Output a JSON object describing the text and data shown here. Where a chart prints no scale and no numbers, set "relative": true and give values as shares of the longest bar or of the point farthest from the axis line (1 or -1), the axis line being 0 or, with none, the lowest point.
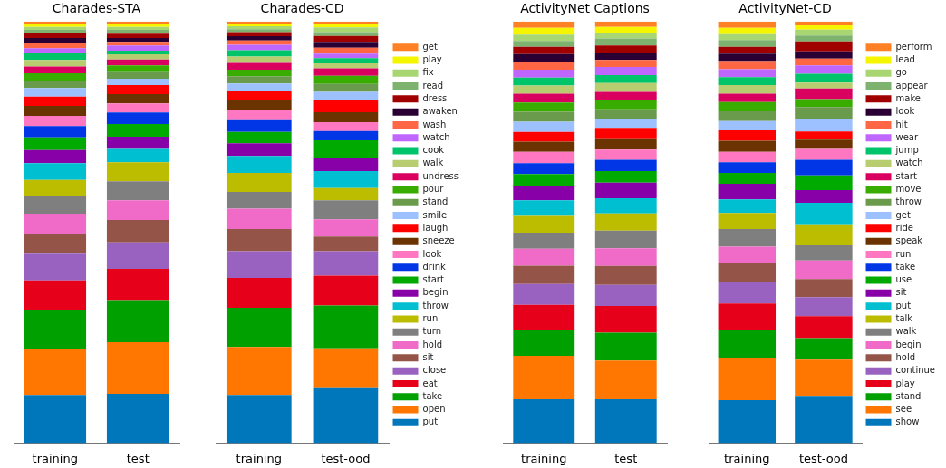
{
  "chart_data": [
    {
      "type": "bar",
      "title": "Charades-STA",
      "stacked": true,
      "relative": true,
      "categories": [
        "training",
        "test"
      ],
      "series": [
        {
          "color": "#0077bb",
          "values": [
            0.114,
            0.117
          ]
        },
        {
          "color": "#ff7700",
          "values": [
            0.11,
            0.122
          ]
        },
        {
          "color": "#00a000",
          "values": [
            0.092,
            0.1
          ]
        },
        {
          "color": "#e6001a",
          "values": [
            0.07,
            0.074
          ]
        },
        {
          "color": "#9a62c0",
          "values": [
            0.063,
            0.063
          ]
        },
        {
          "color": "#955448",
          "values": [
            0.048,
            0.053
          ]
        },
        {
          "color": "#f06ac8",
          "values": [
            0.047,
            0.047
          ]
        },
        {
          "color": "#7f7f7f",
          "values": [
            0.041,
            0.045
          ]
        },
        {
          "color": "#bcbd00",
          "values": [
            0.039,
            0.045
          ]
        },
        {
          "color": "#00bfd0",
          "values": [
            0.04,
            0.032
          ]
        },
        {
          "color": "#8800a8",
          "values": [
            0.031,
            0.029
          ]
        },
        {
          "color": "#00aa00",
          "values": [
            0.03,
            0.03
          ]
        },
        {
          "color": "#0036e6",
          "values": [
            0.027,
            0.027
          ]
        },
        {
          "color": "#ff77c0",
          "values": [
            0.024,
            0.022
          ]
        },
        {
          "color": "#6b3300",
          "values": [
            0.024,
            0.022
          ]
        },
        {
          "color": "#ff0000",
          "values": [
            0.022,
            0.021
          ]
        },
        {
          "color": "#9dc0ff",
          "values": [
            0.02,
            0.015
          ]
        },
        {
          "color": "#6a9a4c",
          "values": [
            0.018,
            0.018
          ]
        },
        {
          "color": "#38ad00",
          "values": [
            0.017,
            0.014
          ]
        },
        {
          "color": "#da0060",
          "values": [
            0.016,
            0.014
          ]
        },
        {
          "color": "#b8cc70",
          "values": [
            0.016,
            0.012
          ]
        },
        {
          "color": "#00c46a",
          "values": [
            0.016,
            0.009
          ]
        },
        {
          "color": "#bf66ff",
          "values": [
            0.012,
            0.012
          ]
        },
        {
          "color": "#ff6644",
          "values": [
            0.012,
            0.009
          ]
        },
        {
          "color": "#2a0034",
          "values": [
            0.012,
            0.009
          ]
        },
        {
          "color": "#a00000",
          "values": [
            0.012,
            0.01
          ]
        },
        {
          "color": "#7db36e",
          "values": [
            0.007,
            0.009
          ]
        },
        {
          "color": "#a8d672",
          "values": [
            0.007,
            0.007
          ]
        },
        {
          "color": "#f5f500",
          "values": [
            0.007,
            0.007
          ]
        },
        {
          "color": "#fe8126",
          "values": [
            0.006,
            0.006
          ]
        }
      ]
    },
    {
      "type": "bar",
      "title": "Charades-CD",
      "stacked": true,
      "relative": true,
      "legend": "right",
      "categories": [
        "training",
        "test-ood"
      ],
      "series": [
        {
          "name": "put",
          "color": "#0077bb",
          "values": [
            0.114,
            0.13
          ]
        },
        {
          "name": "open",
          "color": "#ff7700",
          "values": [
            0.114,
            0.095
          ]
        },
        {
          "name": "take",
          "color": "#00a000",
          "values": [
            0.093,
            0.101
          ]
        },
        {
          "name": "eat",
          "color": "#e6001a",
          "values": [
            0.071,
            0.071
          ]
        },
        {
          "name": "close",
          "color": "#9a62c0",
          "values": [
            0.063,
            0.058
          ]
        },
        {
          "name": "sit",
          "color": "#955448",
          "values": [
            0.053,
            0.035
          ]
        },
        {
          "name": "hold",
          "color": "#f06ac8",
          "values": [
            0.048,
            0.041
          ]
        },
        {
          "name": "turn",
          "color": "#7f7f7f",
          "values": [
            0.04,
            0.045
          ]
        },
        {
          "name": "run",
          "color": "#bcbd00",
          "values": [
            0.045,
            0.029
          ]
        },
        {
          "name": "throw",
          "color": "#00bfd0",
          "values": [
            0.04,
            0.04
          ]
        },
        {
          "name": "begin",
          "color": "#8800a8",
          "values": [
            0.03,
            0.032
          ]
        },
        {
          "name": "start",
          "color": "#00aa00",
          "values": [
            0.027,
            0.041
          ]
        },
        {
          "name": "drink",
          "color": "#0036e6",
          "values": [
            0.028,
            0.022
          ]
        },
        {
          "name": "look",
          "color": "#ff77c0",
          "values": [
            0.024,
            0.021
          ]
        },
        {
          "name": "sneeze",
          "color": "#6b3300",
          "values": [
            0.024,
            0.024
          ]
        },
        {
          "name": "laugh",
          "color": "#ff0000",
          "values": [
            0.02,
            0.03
          ]
        },
        {
          "name": "smile",
          "color": "#9dc0ff",
          "values": [
            0.019,
            0.018
          ]
        },
        {
          "name": "stand",
          "color": "#6a9a4c",
          "values": [
            0.017,
            0.019
          ]
        },
        {
          "name": "pour",
          "color": "#38ad00",
          "values": [
            0.016,
            0.019
          ]
        },
        {
          "name": "undress",
          "color": "#da0060",
          "values": [
            0.016,
            0.018
          ]
        },
        {
          "name": "walk",
          "color": "#b8cc70",
          "values": [
            0.015,
            0.012
          ]
        },
        {
          "name": "cook",
          "color": "#00c46a",
          "values": [
            0.015,
            0.012
          ]
        },
        {
          "name": "watch",
          "color": "#bf66ff",
          "values": [
            0.013,
            0.011
          ]
        },
        {
          "name": "wash",
          "color": "#ff6644",
          "values": [
            0.01,
            0.014
          ]
        },
        {
          "name": "awaken",
          "color": "#2a0034",
          "values": [
            0.01,
            0.014
          ]
        },
        {
          "name": "dress",
          "color": "#a00000",
          "values": [
            0.01,
            0.014
          ]
        },
        {
          "name": "read",
          "color": "#7db36e",
          "values": [
            0.007,
            0.009
          ]
        },
        {
          "name": "fix",
          "color": "#a8d672",
          "values": [
            0.007,
            0.011
          ]
        },
        {
          "name": "play",
          "color": "#f5f500",
          "values": [
            0.006,
            0.008
          ]
        },
        {
          "name": "get",
          "color": "#fe8126",
          "values": [
            0.005,
            0.006
          ]
        }
      ]
    },
    {
      "type": "bar",
      "title": "ActivityNet Captions",
      "stacked": true,
      "relative": true,
      "categories": [
        "training",
        "test"
      ],
      "series": [
        {
          "color": "#0077bb",
          "values": [
            0.104,
            0.104
          ]
        },
        {
          "color": "#ff7700",
          "values": [
            0.103,
            0.092
          ]
        },
        {
          "color": "#00a000",
          "values": [
            0.06,
            0.066
          ]
        },
        {
          "color": "#e6001a",
          "values": [
            0.061,
            0.063
          ]
        },
        {
          "color": "#9a62c0",
          "values": [
            0.049,
            0.05
          ]
        },
        {
          "color": "#955448",
          "values": [
            0.044,
            0.045
          ]
        },
        {
          "color": "#f06ac8",
          "values": [
            0.04,
            0.042
          ]
        },
        {
          "color": "#7f7f7f",
          "values": [
            0.038,
            0.042
          ]
        },
        {
          "color": "#bcbd00",
          "values": [
            0.04,
            0.041
          ]
        },
        {
          "color": "#00bfd0",
          "values": [
            0.037,
            0.036
          ]
        },
        {
          "color": "#8800a8",
          "values": [
            0.034,
            0.037
          ]
        },
        {
          "color": "#00aa00",
          "values": [
            0.028,
            0.027
          ]
        },
        {
          "color": "#0036e6",
          "values": [
            0.026,
            0.027
          ]
        },
        {
          "color": "#ff77c0",
          "values": [
            0.027,
            0.024
          ]
        },
        {
          "color": "#6b3300",
          "values": [
            0.024,
            0.025
          ]
        },
        {
          "color": "#ff0000",
          "values": [
            0.023,
            0.027
          ]
        },
        {
          "color": "#9dc0ff",
          "values": [
            0.024,
            0.022
          ]
        },
        {
          "color": "#6a9a4c",
          "values": [
            0.024,
            0.022
          ]
        },
        {
          "color": "#38ad00",
          "values": [
            0.022,
            0.021
          ]
        },
        {
          "color": "#da0060",
          "values": [
            0.021,
            0.02
          ]
        },
        {
          "color": "#b8cc70",
          "values": [
            0.019,
            0.021
          ]
        },
        {
          "color": "#00c46a",
          "values": [
            0.019,
            0.019
          ]
        },
        {
          "color": "#bf66ff",
          "values": [
            0.019,
            0.019
          ]
        },
        {
          "color": "#ff6644",
          "values": [
            0.018,
            0.017
          ]
        },
        {
          "color": "#2a0034",
          "values": [
            0.019,
            0.017
          ]
        },
        {
          "color": "#a00000",
          "values": [
            0.017,
            0.017
          ]
        },
        {
          "color": "#7db36e",
          "values": [
            0.014,
            0.017
          ]
        },
        {
          "color": "#a8d672",
          "values": [
            0.015,
            0.014
          ]
        },
        {
          "color": "#f5f500",
          "values": [
            0.016,
            0.013
          ]
        },
        {
          "color": "#fe8126",
          "values": [
            0.015,
            0.013
          ]
        }
      ]
    },
    {
      "type": "bar",
      "title": "ActivityNet-CD",
      "stacked": true,
      "relative": true,
      "legend": "right",
      "categories": [
        "training",
        "test-ood"
      ],
      "series": [
        {
          "name": "show",
          "color": "#0077bb",
          "values": [
            0.102,
            0.11
          ]
        },
        {
          "name": "see",
          "color": "#ff7700",
          "values": [
            0.1,
            0.088
          ]
        },
        {
          "name": "stand",
          "color": "#00a000",
          "values": [
            0.065,
            0.051
          ]
        },
        {
          "name": "play",
          "color": "#e6001a",
          "values": [
            0.064,
            0.052
          ]
        },
        {
          "name": "continue",
          "color": "#9a62c0",
          "values": [
            0.05,
            0.045
          ]
        },
        {
          "name": "hold",
          "color": "#955448",
          "values": [
            0.045,
            0.043
          ]
        },
        {
          "name": "begin",
          "color": "#f06ac8",
          "values": [
            0.04,
            0.044
          ]
        },
        {
          "name": "walk",
          "color": "#7f7f7f",
          "values": [
            0.042,
            0.036
          ]
        },
        {
          "name": "talk",
          "color": "#bcbd00",
          "values": [
            0.038,
            0.048
          ]
        },
        {
          "name": "put",
          "color": "#00bfd0",
          "values": [
            0.032,
            0.053
          ]
        },
        {
          "name": "sit",
          "color": "#8800a8",
          "values": [
            0.037,
            0.03
          ]
        },
        {
          "name": "use",
          "color": "#00aa00",
          "values": [
            0.026,
            0.035
          ]
        },
        {
          "name": "take",
          "color": "#0036e6",
          "values": [
            0.025,
            0.037
          ]
        },
        {
          "name": "run",
          "color": "#ff77c0",
          "values": [
            0.025,
            0.026
          ]
        },
        {
          "name": "speak",
          "color": "#6b3300",
          "values": [
            0.026,
            0.022
          ]
        },
        {
          "name": "ride",
          "color": "#ff0000",
          "values": [
            0.025,
            0.019
          ]
        },
        {
          "name": "get",
          "color": "#9dc0ff",
          "values": [
            0.022,
            0.031
          ]
        },
        {
          "name": "throw",
          "color": "#6a9a4c",
          "values": [
            0.023,
            0.027
          ]
        },
        {
          "name": "move",
          "color": "#38ad00",
          "values": [
            0.022,
            0.019
          ]
        },
        {
          "name": "start",
          "color": "#da0060",
          "values": [
            0.02,
            0.025
          ]
        },
        {
          "name": "watch",
          "color": "#b8cc70",
          "values": [
            0.02,
            0.014
          ]
        },
        {
          "name": "jump",
          "color": "#00c46a",
          "values": [
            0.019,
            0.021
          ]
        },
        {
          "name": "wear",
          "color": "#bf66ff",
          "values": [
            0.019,
            0.02
          ]
        },
        {
          "name": "hit",
          "color": "#ff6644",
          "values": [
            0.019,
            0.016
          ]
        },
        {
          "name": "look",
          "color": "#2a0034",
          "values": [
            0.018,
            0.017
          ]
        },
        {
          "name": "make",
          "color": "#a00000",
          "values": [
            0.016,
            0.024
          ]
        },
        {
          "name": "appear",
          "color": "#7db36e",
          "values": [
            0.016,
            0.014
          ]
        },
        {
          "name": "go",
          "color": "#a8d672",
          "values": [
            0.014,
            0.014
          ]
        },
        {
          "name": "lead",
          "color": "#f5f500",
          "values": [
            0.015,
            0.01
          ]
        },
        {
          "name": "perform",
          "color": "#fe8126",
          "values": [
            0.015,
            0.009
          ]
        }
      ]
    }
  ]
}
